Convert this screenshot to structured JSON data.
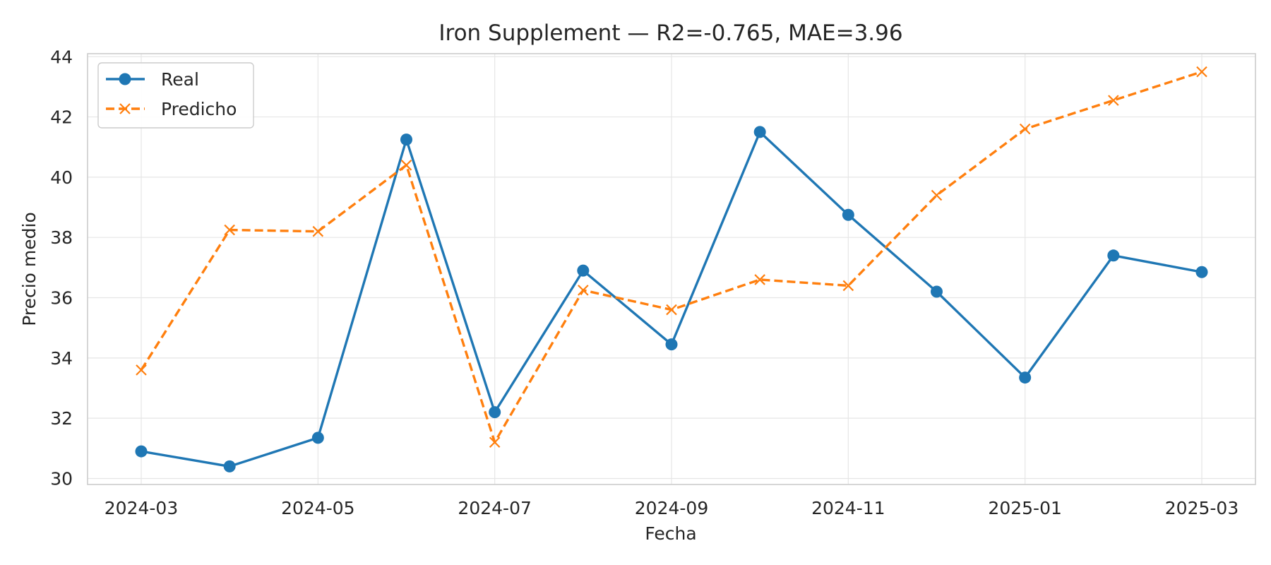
{
  "chart_data": {
    "type": "line",
    "title": "Iron Supplement — R2=-0.765, MAE=3.96",
    "xlabel": "Fecha",
    "ylabel": "Precio medio",
    "x": [
      "2024-03",
      "2024-04",
      "2024-05",
      "2024-06",
      "2024-07",
      "2024-08",
      "2024-09",
      "2024-10",
      "2024-11",
      "2024-12",
      "2025-01",
      "2025-02",
      "2025-03"
    ],
    "x_ticks": [
      "2024-03",
      "2024-05",
      "2024-07",
      "2024-09",
      "2024-11",
      "2025-01",
      "2025-03"
    ],
    "y_ticks": [
      30,
      32,
      34,
      36,
      38,
      40,
      42,
      44
    ],
    "ylim": [
      29.8,
      44.1
    ],
    "grid": true,
    "legend_position": "top-left",
    "series": [
      {
        "name": "Real",
        "color": "#1f77b4",
        "line_style": "solid",
        "marker": "circle",
        "values": [
          30.9,
          30.4,
          31.35,
          41.25,
          32.2,
          36.9,
          34.45,
          41.5,
          38.75,
          36.2,
          33.35,
          37.4,
          36.85
        ]
      },
      {
        "name": "Predicho",
        "color": "#ff7f0e",
        "line_style": "dashed",
        "marker": "x",
        "values": [
          33.6,
          38.25,
          38.2,
          40.4,
          31.2,
          36.25,
          35.6,
          36.6,
          36.4,
          39.4,
          41.6,
          42.55,
          43.5
        ]
      }
    ]
  }
}
